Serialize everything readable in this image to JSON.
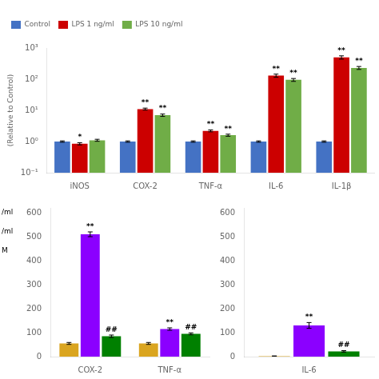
{
  "chart_data": [
    {
      "type": "bar",
      "categories": [
        "iNOS",
        "COX-2",
        "TNF-α",
        "IL-6",
        "IL-1β"
      ],
      "ylabel": "(Relative to Control)",
      "log": "y",
      "ylim": [
        0.1,
        1000
      ],
      "yticks": [
        {
          "value": 0.1,
          "label": "10⁻¹"
        },
        {
          "value": 1,
          "label": "10⁰"
        },
        {
          "value": 10,
          "label": "10¹"
        },
        {
          "value": 100,
          "label": "10²"
        },
        {
          "value": 1000,
          "label": "10³"
        }
      ],
      "grid": false,
      "legend": "upper left",
      "series": [
        {
          "name": "Control",
          "color": "#4472C4",
          "values": [
            1.0,
            1.0,
            1.0,
            1.0,
            1.0
          ],
          "errors": [
            0.05,
            0.05,
            0.05,
            0.05,
            0.05
          ]
        },
        {
          "name": "LPS 1 ng/ml",
          "color": "#CC0000",
          "values": [
            0.85,
            11.0,
            2.2,
            130.0,
            500.0
          ],
          "errors": [
            0.07,
            0.8,
            0.15,
            15.0,
            60.0
          ],
          "annotations": [
            "*",
            "**",
            "**",
            "**",
            "**"
          ]
        },
        {
          "name": "LPS 10 ng/ml",
          "color": "#70AD47",
          "values": [
            1.1,
            7.0,
            1.6,
            95.0,
            230.0
          ],
          "errors": [
            0.08,
            0.6,
            0.12,
            10.0,
            25.0
          ],
          "annotations": [
            null,
            "**",
            "**",
            "**",
            "**"
          ]
        }
      ]
    },
    {
      "type": "bar",
      "categories": [
        "COX-2",
        "TNF-α"
      ],
      "ylim": [
        0,
        620
      ],
      "yticks": [
        0,
        100,
        200,
        300,
        400,
        500,
        600
      ],
      "grid": false,
      "annotations": [
        "/ml",
        "/ml",
        "M"
      ],
      "series": [
        {
          "color": "#DAA520",
          "values": [
            55,
            55
          ],
          "errors": [
            4,
            4
          ]
        },
        {
          "color": "#8B00FF",
          "values": [
            510,
            115
          ],
          "errors": [
            10,
            5
          ],
          "annotations": [
            "**",
            "**"
          ]
        },
        {
          "color": "#008000",
          "values": [
            85,
            95
          ],
          "errors": [
            5,
            4
          ],
          "annotations": [
            "##",
            "##"
          ]
        }
      ]
    },
    {
      "type": "bar",
      "categories": [
        "IL-6"
      ],
      "ylim": [
        0,
        620
      ],
      "yticks": [
        0,
        100,
        200,
        300,
        400,
        500,
        600
      ],
      "grid": false,
      "series": [
        {
          "color": "#DAA520",
          "values": [
            2
          ],
          "errors": [
            1
          ]
        },
        {
          "color": "#8B00FF",
          "values": [
            130
          ],
          "errors": [
            12
          ],
          "annotations": [
            "**"
          ]
        },
        {
          "color": "#008000",
          "values": [
            22
          ],
          "errors": [
            3
          ],
          "annotations": [
            "##"
          ]
        }
      ]
    }
  ]
}
